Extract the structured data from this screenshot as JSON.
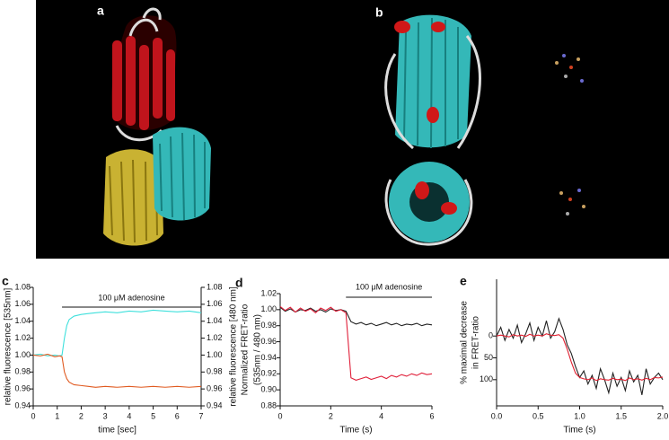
{
  "figure": {
    "panel_a": "a",
    "panel_b": "b"
  },
  "chart_data": [
    {
      "type": "line",
      "label": "c",
      "xlabel": "time [sec]",
      "ylabel": [
        "relative fluorescence [535nm]"
      ],
      "y2label": "relative fluorescence [480 nm]",
      "annotation": {
        "text": "100 μM adenosine",
        "x": [
          1.2,
          7
        ]
      },
      "xlim": [
        0,
        7
      ],
      "xticks": [
        0,
        1,
        2,
        3,
        4,
        5,
        6,
        7
      ],
      "ylim": [
        0.94,
        1.08
      ],
      "yticks": [
        0.94,
        0.96,
        0.98,
        {
          "value": 1,
          "label": "1.00"
        },
        1.02,
        1.04,
        1.06,
        1.08
      ],
      "y2lim": [
        0.94,
        1.08
      ],
      "y2ticks": [
        0.94,
        0.96,
        0.98,
        {
          "value": 1,
          "label": "1.00"
        },
        1.02,
        1.04,
        1.06,
        1.08
      ],
      "x": [
        0,
        0.3,
        0.6,
        0.9,
        1.1,
        1.2,
        1.3,
        1.4,
        1.5,
        1.7,
        2,
        2.3,
        2.6,
        3,
        3.5,
        4,
        4.5,
        5,
        5.5,
        6,
        6.5,
        7
      ],
      "series": [
        {
          "color": "#3fe0dc",
          "axis": "y2",
          "values": [
            1.0,
            1.001,
            0.999,
            1.0,
            0.999,
            1.0,
            1.02,
            1.035,
            1.042,
            1.046,
            1.048,
            1.049,
            1.05,
            1.051,
            1.05,
            1.052,
            1.051,
            1.053,
            1.052,
            1.051,
            1.052,
            1.05
          ]
        },
        {
          "color": "#e05a20",
          "values": [
            1.0,
            0.999,
            1.001,
            0.998,
            0.999,
            0.998,
            0.98,
            0.972,
            0.968,
            0.965,
            0.964,
            0.963,
            0.962,
            0.963,
            0.962,
            0.963,
            0.962,
            0.963,
            0.962,
            0.963,
            0.962,
            0.963
          ]
        }
      ]
    },
    {
      "type": "line",
      "label": "d",
      "xlabel": "Time (s)",
      "ylabel": [
        "Normalized FRET-ratio",
        "(535nm / 480 nm)"
      ],
      "annotation": {
        "text": "100 μM adenosine",
        "x": [
          2.6,
          6
        ]
      },
      "xlim": [
        0,
        6
      ],
      "xticks": [
        0,
        2,
        4,
        6
      ],
      "ylim": [
        0.88,
        1.02
      ],
      "yticks": [
        0.88,
        {
          "value": 0.9,
          "label": "0.90"
        },
        0.92,
        0.94,
        0.96,
        0.98,
        {
          "value": 1,
          "label": "1.00"
        },
        1.02
      ],
      "x": [
        0,
        0.2,
        0.4,
        0.6,
        0.8,
        1,
        1.2,
        1.4,
        1.6,
        1.8,
        2,
        2.2,
        2.4,
        2.6,
        2.8,
        3,
        3.2,
        3.4,
        3.6,
        3.8,
        4,
        4.2,
        4.4,
        4.6,
        4.8,
        5,
        5.2,
        5.4,
        5.6,
        5.8,
        6
      ],
      "series": [
        {
          "color": "#222222",
          "values": [
            1.003,
            0.998,
            1.001,
            0.997,
            1.0,
            0.999,
            1.002,
            0.998,
            1.0,
            0.997,
            1.001,
            0.999,
            1.0,
            0.998,
            0.985,
            0.982,
            0.984,
            0.981,
            0.983,
            0.98,
            0.982,
            0.984,
            0.981,
            0.983,
            0.98,
            0.982,
            0.981,
            0.983,
            0.98,
            0.982,
            0.981
          ]
        },
        {
          "color": "#e0203a",
          "values": [
            1.004,
            0.999,
            1.003,
            0.997,
            1.002,
            0.998,
            1.001,
            0.996,
            1.002,
            0.999,
            1.003,
            0.998,
            1.0,
            0.996,
            0.915,
            0.912,
            0.914,
            0.916,
            0.913,
            0.915,
            0.917,
            0.914,
            0.918,
            0.916,
            0.919,
            0.917,
            0.92,
            0.918,
            0.921,
            0.919,
            0.92
          ]
        }
      ]
    },
    {
      "type": "line",
      "label": "e",
      "xlabel": "Time (s)",
      "ylabel": [
        "% maximal decrease",
        "in FRET-ratio"
      ],
      "xlim": [
        0,
        2
      ],
      "xticks": [
        {
          "value": 0,
          "label": "0.0"
        },
        0.5,
        {
          "value": 1,
          "label": "1.0"
        },
        1.5,
        {
          "value": 2,
          "label": "2.0"
        }
      ],
      "ylim": [
        160,
        -130
      ],
      "yticks": [
        0,
        50,
        100
      ],
      "x": [
        0,
        0.05,
        0.1,
        0.15,
        0.2,
        0.25,
        0.3,
        0.35,
        0.4,
        0.45,
        0.5,
        0.55,
        0.6,
        0.65,
        0.7,
        0.75,
        0.8,
        0.85,
        0.9,
        0.95,
        1,
        1.05,
        1.1,
        1.15,
        1.2,
        1.25,
        1.3,
        1.35,
        1.4,
        1.45,
        1.5,
        1.55,
        1.6,
        1.65,
        1.7,
        1.75,
        1.8,
        1.85,
        1.9,
        1.95,
        2
      ],
      "series": [
        {
          "color": "#222222",
          "values": [
            0,
            -20,
            10,
            -15,
            5,
            -25,
            15,
            -5,
            -30,
            10,
            -20,
            0,
            -35,
            5,
            -10,
            -40,
            -15,
            20,
            40,
            70,
            95,
            80,
            110,
            90,
            120,
            75,
            100,
            130,
            85,
            115,
            95,
            125,
            80,
            105,
            90,
            135,
            75,
            110,
            95,
            85,
            100
          ]
        },
        {
          "color": "#e02030",
          "values": [
            0,
            -2,
            0,
            2,
            -3,
            0,
            -2,
            1,
            -4,
            0,
            -2,
            0,
            -5,
            -2,
            -1,
            -3,
            5,
            30,
            60,
            85,
            95,
            98,
            100,
            96,
            102,
            98,
            100,
            101,
            97,
            100,
            99,
            102,
            96,
            100,
            98,
            101,
            97,
            100,
            95,
            96,
            94
          ]
        }
      ]
    }
  ]
}
